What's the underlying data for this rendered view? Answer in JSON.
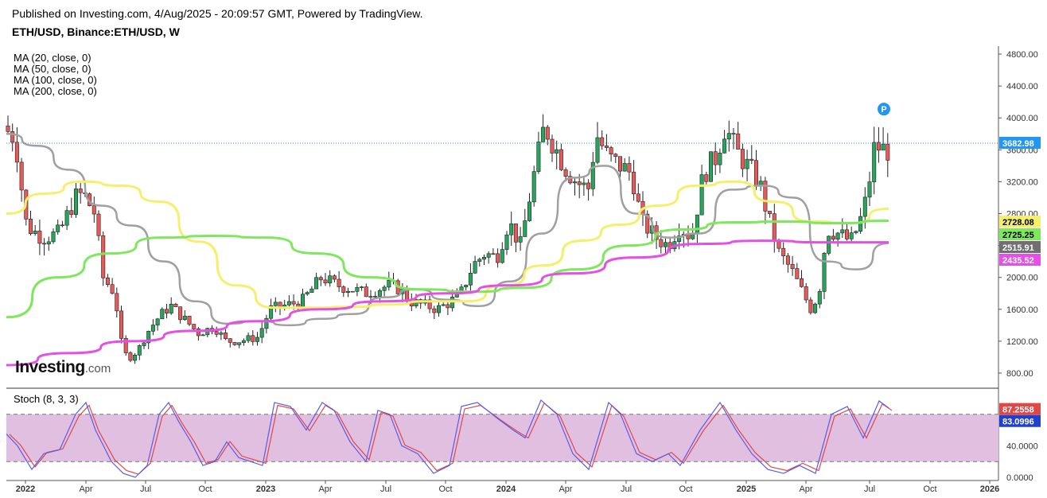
{
  "header": {
    "published": "Published on Investing.com, 4/Aug/2025 - 20:09:57 GMT, Powered by TradingView.",
    "symbol": "ETH/USD, Binance:ETH/USD, W"
  },
  "legend": {
    "ma": [
      "MA (20, close, 0)",
      "MA (50, close, 0)",
      "MA (100, close, 0)",
      "MA (200, close, 0)"
    ],
    "stoch": "Stoch (8, 3, 3)"
  },
  "logo": {
    "main": "Investing",
    "suffix": ".com"
  },
  "badge": {
    "text": "P",
    "color": "#2196f3"
  },
  "colors": {
    "up": "#26a65b",
    "down": "#e8595a",
    "ma20": "#a0a0a0",
    "ma50": "#f5f06b",
    "ma100": "#7ee85c",
    "ma200": "#e54fe5",
    "stoch_k": "#5b5be8",
    "stoch_d": "#e04848",
    "stoch_band": "#e0bfe0"
  },
  "chart_data": [
    {
      "type": "candlestick",
      "title": "ETH/USD, Binance:ETH/USD, W",
      "y_ticks": [
        "4800.00",
        "4400.00",
        "4000.00",
        "3600.00",
        "3200.00",
        "2800.00",
        "2400.00",
        "2000.00",
        "1600.00",
        "1200.00",
        "800.00"
      ],
      "ylim": [
        640,
        4900
      ],
      "x_ticks": [
        "2022",
        "Apr",
        "Jul",
        "Oct",
        "2023",
        "Apr",
        "Jul",
        "Oct",
        "2024",
        "Apr",
        "Jul",
        "Oct",
        "2025",
        "Apr",
        "Jul",
        "Oct",
        "2026"
      ],
      "last_price": 3682.98,
      "series_tags": [
        {
          "name": "last",
          "value": 3682.98,
          "label": "3682.98",
          "color": "#2196f3"
        },
        {
          "name": "MA (50, close, 0)",
          "value": 2728.08,
          "label": "2728.08",
          "color": "#f5f06b"
        },
        {
          "name": "MA (100, close, 0)",
          "value": 2725.25,
          "label": "2725.25",
          "color": "#7ee85c"
        },
        {
          "name": "MA (20, close, 0)",
          "value": 2515.91,
          "label": "2515.91",
          "color": "#707070"
        },
        {
          "name": "MA (200, close, 0)",
          "value": 2435.52,
          "label": "2435.52",
          "color": "#e54fe5"
        }
      ],
      "moving_averages": [
        {
          "name": "MA (20, close, 0)",
          "values": [
            3800,
            3650,
            3350,
            2900,
            2650,
            2200,
            1700,
            1420,
            1450,
            1400,
            1480,
            1540,
            1750,
            1850,
            1720,
            1640,
            1950,
            2550,
            3250,
            3400,
            2800,
            2500,
            2550,
            3100,
            3150,
            3000,
            2200,
            2100,
            2430
          ]
        },
        {
          "name": "MA (50, close, 0)",
          "values": [
            2800,
            3050,
            3200,
            3150,
            2950,
            2450,
            1900,
            1620,
            1620,
            1630,
            1660,
            1700,
            1700,
            1900,
            2150,
            2460,
            2660,
            2900,
            3150,
            3200,
            2950,
            2700,
            2680,
            2860
          ]
        },
        {
          "name": "MA (100, close, 0)",
          "values": [
            1500,
            2000,
            2300,
            2500,
            2520,
            2500,
            2300,
            2000,
            1850,
            1820,
            1870,
            2100,
            2400,
            2600,
            2690,
            2700,
            2680,
            2710
          ]
        },
        {
          "name": "MA (200, close, 0)",
          "values": [
            900,
            1050,
            1200,
            1330,
            1450,
            1600,
            1700,
            1800,
            1900,
            2050,
            2250,
            2420,
            2460,
            2440,
            2440
          ]
        }
      ]
    },
    {
      "type": "line",
      "title": "Stoch (8, 3, 3)",
      "y_ticks": [
        "40.0000",
        "0.0000"
      ],
      "bands": [
        20,
        80
      ],
      "ylim": [
        0,
        100
      ],
      "series": [
        {
          "name": "K",
          "value": 87.2558,
          "label": "87.2558",
          "color": "#e04848"
        },
        {
          "name": "D",
          "value": 83.0996,
          "label": "83.0996",
          "color": "#2040d0"
        }
      ]
    }
  ]
}
